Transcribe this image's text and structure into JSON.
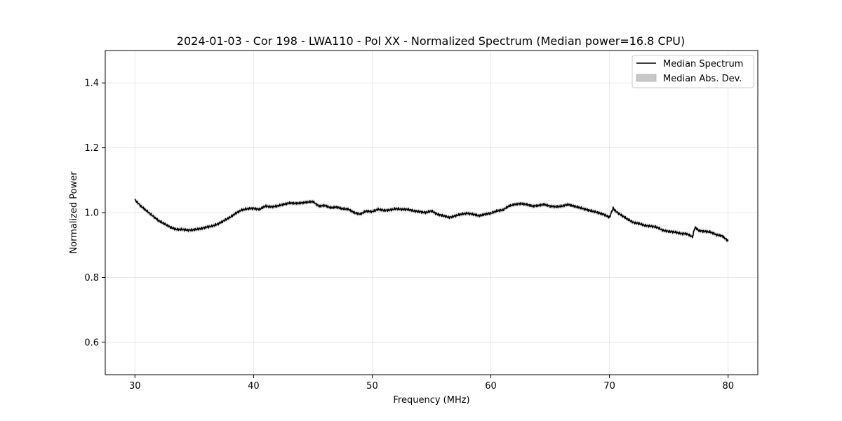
{
  "chart_data": {
    "type": "line",
    "title": "2024-01-03 - Cor 198 - LWA110 - Pol XX - Normalized Spectrum (Median power=16.8 CPU)",
    "xlabel": "Frequency (MHz)",
    "ylabel": "Normalized Power",
    "xlim": [
      27.5,
      82.5
    ],
    "ylim": [
      0.5,
      1.5
    ],
    "xticks": [
      30,
      40,
      50,
      60,
      70,
      80
    ],
    "yticks": [
      0.6,
      0.8,
      1.0,
      1.2,
      1.4
    ],
    "xtick_labels": [
      "30",
      "40",
      "50",
      "60",
      "70",
      "80"
    ],
    "ytick_labels": [
      "0.6",
      "0.8",
      "1.0",
      "1.2",
      "1.4"
    ],
    "grid": true,
    "legend_position": "top-right",
    "series": [
      {
        "name": "Median Spectrum",
        "kind": "line",
        "color": "#000000",
        "x": [
          30,
          30.5,
          31,
          31.5,
          32,
          32.5,
          33,
          33.5,
          34,
          34.5,
          35,
          35.5,
          36,
          36.5,
          37,
          37.5,
          38,
          38.5,
          39,
          39.5,
          40,
          40.5,
          41,
          41.5,
          42,
          42.5,
          43,
          43.5,
          44,
          44.5,
          45,
          45.5,
          46,
          46.5,
          47,
          47.5,
          48,
          48.5,
          49,
          49.5,
          50,
          50.5,
          51,
          51.5,
          52,
          52.5,
          53,
          53.5,
          54,
          54.5,
          55,
          55.5,
          56,
          56.5,
          57,
          57.5,
          58,
          58.5,
          59,
          59.5,
          60,
          60.5,
          61,
          61.5,
          62,
          62.5,
          63,
          63.5,
          64,
          64.5,
          65,
          65.5,
          66,
          66.5,
          67,
          67.5,
          68,
          68.5,
          69,
          69.5,
          70,
          70.3,
          70.5,
          71,
          71.5,
          72,
          72.5,
          73,
          73.5,
          74,
          74.5,
          75,
          75.5,
          76,
          76.5,
          77,
          77.2,
          77.5,
          78,
          78.5,
          79,
          79.5,
          80
        ],
        "values": [
          1.04,
          1.02,
          1.005,
          0.99,
          0.975,
          0.965,
          0.955,
          0.948,
          0.948,
          0.946,
          0.947,
          0.95,
          0.955,
          0.958,
          0.965,
          0.975,
          0.985,
          0.998,
          1.008,
          1.012,
          1.013,
          1.01,
          1.02,
          1.018,
          1.02,
          1.025,
          1.03,
          1.028,
          1.03,
          1.032,
          1.034,
          1.02,
          1.022,
          1.015,
          1.017,
          1.012,
          1.01,
          1.0,
          0.995,
          1.005,
          1.003,
          1.01,
          1.007,
          1.008,
          1.012,
          1.01,
          1.01,
          1.005,
          1.003,
          1.0,
          1.005,
          0.995,
          0.99,
          0.985,
          0.99,
          0.995,
          0.998,
          0.995,
          0.99,
          0.995,
          0.998,
          1.005,
          1.008,
          1.02,
          1.025,
          1.028,
          1.025,
          1.02,
          1.022,
          1.025,
          1.02,
          1.018,
          1.02,
          1.025,
          1.02,
          1.015,
          1.01,
          1.005,
          1.0,
          0.995,
          0.985,
          1.014,
          1.005,
          0.992,
          0.98,
          0.97,
          0.966,
          0.96,
          0.958,
          0.955,
          0.945,
          0.942,
          0.94,
          0.935,
          0.935,
          0.925,
          0.955,
          0.945,
          0.942,
          0.94,
          0.932,
          0.928,
          0.912
        ]
      },
      {
        "name": "Median Abs. Dev.",
        "kind": "band",
        "color": "#c8c8c8",
        "half_width": 0.006
      }
    ]
  }
}
